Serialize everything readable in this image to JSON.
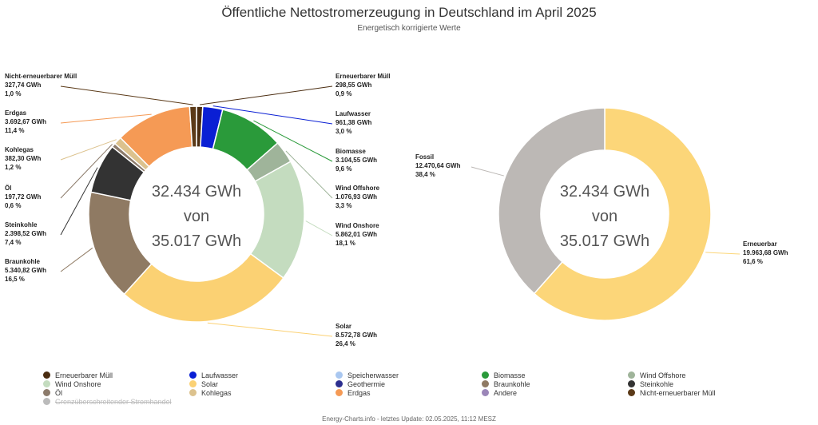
{
  "title": "Öffentliche Nettostromerzeugung in Deutschland im April 2025",
  "subtitle": "Energetisch korrigierte Werte",
  "footer": "Energy-Charts.info - letztes Update: 02.05.2025, 11:12 MESZ",
  "chart_data": [
    {
      "type": "pie",
      "variant": "donut",
      "center_text": [
        "32.434 GWh",
        "von",
        "35.017 GWh"
      ],
      "slices": [
        {
          "name": "Erneuerbarer Müll",
          "value_label": "298,55 GWh",
          "percent_label": "0,9 %",
          "value": 298.55,
          "color": "#4a2c10"
        },
        {
          "name": "Laufwasser",
          "value_label": "961,38 GWh",
          "percent_label": "3,0 %",
          "value": 961.38,
          "color": "#0a1fd4"
        },
        {
          "name": "Biomasse",
          "value_label": "3.104,55 GWh",
          "percent_label": "9,6 %",
          "value": 3104.55,
          "color": "#2a9a3a"
        },
        {
          "name": "Wind Offshore",
          "value_label": "1.076,93 GWh",
          "percent_label": "3,3 %",
          "value": 1076.93,
          "color": "#9fb49a"
        },
        {
          "name": "Wind Onshore",
          "value_label": "5.862,01 GWh",
          "percent_label": "18,1 %",
          "value": 5862.01,
          "color": "#c4dcbf"
        },
        {
          "name": "Solar",
          "value_label": "8.572,78 GWh",
          "percent_label": "26,4 %",
          "value": 8572.78,
          "color": "#fbd173"
        },
        {
          "name": "Braunkohle",
          "value_label": "5.340,82 GWh",
          "percent_label": "16,5 %",
          "value": 5340.82,
          "color": "#8f7a63"
        },
        {
          "name": "Steinkohle",
          "value_label": "2.398,52 GWh",
          "percent_label": "7,4 %",
          "value": 2398.52,
          "color": "#333333"
        },
        {
          "name": "Öl",
          "value_label": "197,72 GWh",
          "percent_label": "0,6 %",
          "value": 197.72,
          "color": "#8c7b6b"
        },
        {
          "name": "Kohlegas",
          "value_label": "382,30 GWh",
          "percent_label": "1,2 %",
          "value": 382.3,
          "color": "#dcc28e"
        },
        {
          "name": "Erdgas",
          "value_label": "3.692,67 GWh",
          "percent_label": "11,4 %",
          "value": 3692.67,
          "color": "#f59a55"
        },
        {
          "name": "Nicht-erneuerbarer Müll",
          "value_label": "327,74 GWh",
          "percent_label": "1,0 %",
          "value": 327.74,
          "color": "#5b3a18"
        }
      ]
    },
    {
      "type": "pie",
      "variant": "donut",
      "center_text": [
        "32.434 GWh",
        "von",
        "35.017 GWh"
      ],
      "slices": [
        {
          "name": "Erneuerbar",
          "value_label": "19.963,68 GWh",
          "percent_label": "61,6 %",
          "value": 19963.68,
          "color": "#fcd679"
        },
        {
          "name": "Fossil",
          "value_label": "12.470,64 GWh",
          "percent_label": "38,4 %",
          "value": 12470.64,
          "color": "#bcb8b5"
        }
      ]
    }
  ],
  "legend": [
    {
      "label": "Erneuerbarer Müll",
      "color": "#4a2c10",
      "enabled": true
    },
    {
      "label": "Laufwasser",
      "color": "#0a1fd4",
      "enabled": true
    },
    {
      "label": "Speicherwasser",
      "color": "#a9c7f0",
      "enabled": true
    },
    {
      "label": "Biomasse",
      "color": "#2a9a3a",
      "enabled": true
    },
    {
      "label": "Wind Offshore",
      "color": "#9fb49a",
      "enabled": true
    },
    {
      "label": "Wind Onshore",
      "color": "#c4dcbf",
      "enabled": true
    },
    {
      "label": "Solar",
      "color": "#fbd173",
      "enabled": true
    },
    {
      "label": "Geothermie",
      "color": "#2c2f8f",
      "enabled": true
    },
    {
      "label": "Braunkohle",
      "color": "#8f7a63",
      "enabled": true
    },
    {
      "label": "Steinkohle",
      "color": "#333333",
      "enabled": true
    },
    {
      "label": "Öl",
      "color": "#8c7b6b",
      "enabled": true
    },
    {
      "label": "Kohlegas",
      "color": "#dcc28e",
      "enabled": true
    },
    {
      "label": "Erdgas",
      "color": "#f59a55",
      "enabled": true
    },
    {
      "label": "Andere",
      "color": "#9b86b8",
      "enabled": true
    },
    {
      "label": "Nicht-erneuerbarer Müll",
      "color": "#5b3a18",
      "enabled": true
    },
    {
      "label": "Grenzüberschreitender Stromhandel",
      "color": "#bbbbbb",
      "enabled": false
    }
  ]
}
